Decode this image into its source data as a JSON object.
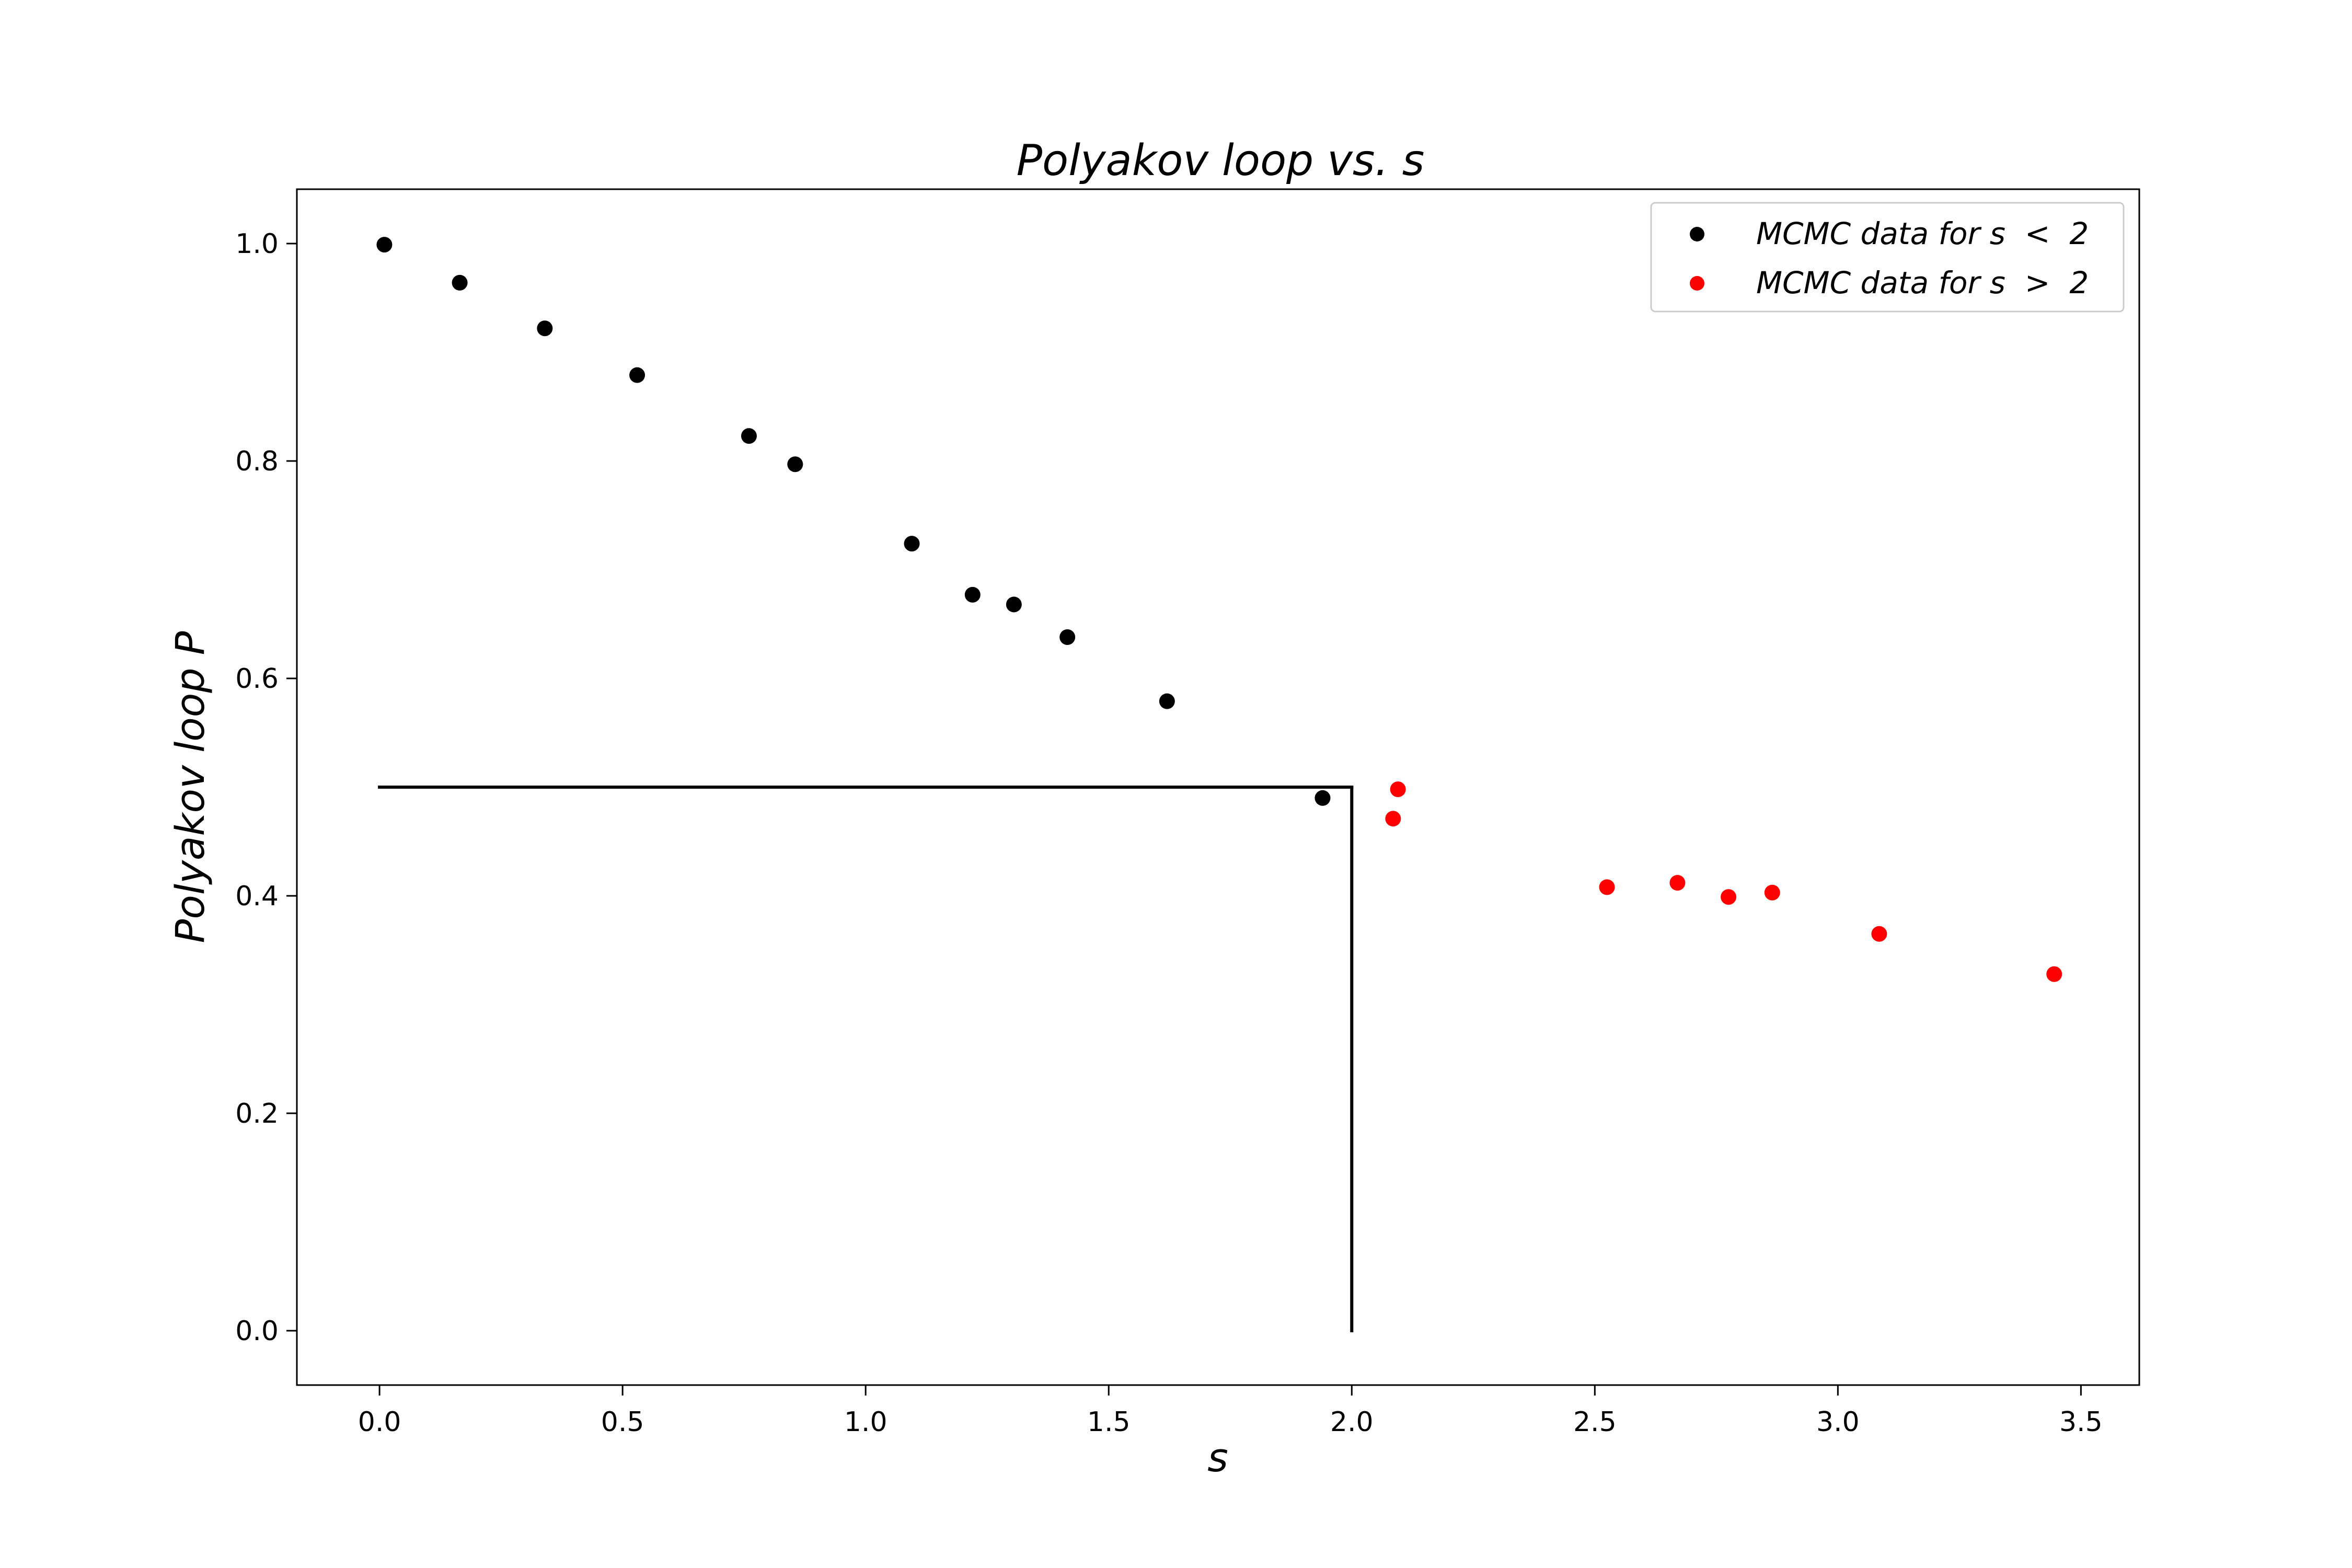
{
  "chart_data": {
    "type": "scatter",
    "title": "Polyakov loop vs.  s",
    "xlabel": "s",
    "ylabel": "Polyakov loop P",
    "xlim": [
      -0.17,
      3.62
    ],
    "ylim": [
      -0.05,
      1.05
    ],
    "x_ticks": [
      {
        "value": 0.0,
        "label": "0.0"
      },
      {
        "value": 0.5,
        "label": "0.5"
      },
      {
        "value": 1.0,
        "label": "1.0"
      },
      {
        "value": 1.5,
        "label": "1.5"
      },
      {
        "value": 2.0,
        "label": "2.0"
      },
      {
        "value": 2.5,
        "label": "2.5"
      },
      {
        "value": 3.0,
        "label": "3.0"
      },
      {
        "value": 3.5,
        "label": "3.5"
      }
    ],
    "y_ticks": [
      {
        "value": 0.0,
        "label": "0.0"
      },
      {
        "value": 0.2,
        "label": "0.2"
      },
      {
        "value": 0.4,
        "label": "0.4"
      },
      {
        "value": 0.6,
        "label": "0.6"
      },
      {
        "value": 0.8,
        "label": "0.8"
      },
      {
        "value": 1.0,
        "label": "1.0"
      }
    ],
    "grid": false,
    "legend_position": "top-right",
    "series": [
      {
        "name": "MCMC data for s  <  2",
        "color": "#000000",
        "points": [
          {
            "x": 0.01,
            "y": 0.999
          },
          {
            "x": 0.165,
            "y": 0.964
          },
          {
            "x": 0.34,
            "y": 0.922
          },
          {
            "x": 0.53,
            "y": 0.879
          },
          {
            "x": 0.76,
            "y": 0.823
          },
          {
            "x": 0.855,
            "y": 0.797
          },
          {
            "x": 1.095,
            "y": 0.724
          },
          {
            "x": 1.22,
            "y": 0.677
          },
          {
            "x": 1.305,
            "y": 0.668
          },
          {
            "x": 1.415,
            "y": 0.638
          },
          {
            "x": 1.62,
            "y": 0.579
          },
          {
            "x": 1.94,
            "y": 0.49
          }
        ]
      },
      {
        "name": "MCMC data for s  >  2",
        "color": "#ff0000",
        "points": [
          {
            "x": 2.095,
            "y": 0.498
          },
          {
            "x": 2.085,
            "y": 0.471
          },
          {
            "x": 2.525,
            "y": 0.408
          },
          {
            "x": 2.67,
            "y": 0.412
          },
          {
            "x": 2.775,
            "y": 0.399
          },
          {
            "x": 2.865,
            "y": 0.403
          },
          {
            "x": 3.085,
            "y": 0.365
          },
          {
            "x": 3.445,
            "y": 0.328
          }
        ]
      }
    ],
    "reference_lines": [
      {
        "kind": "horizontal",
        "y": 0.5,
        "x_from": 0.0,
        "x_to": 2.0,
        "color": "#000000"
      },
      {
        "kind": "vertical",
        "x": 2.0,
        "y_from": 0.0,
        "y_to": 0.5,
        "color": "#000000"
      }
    ]
  }
}
